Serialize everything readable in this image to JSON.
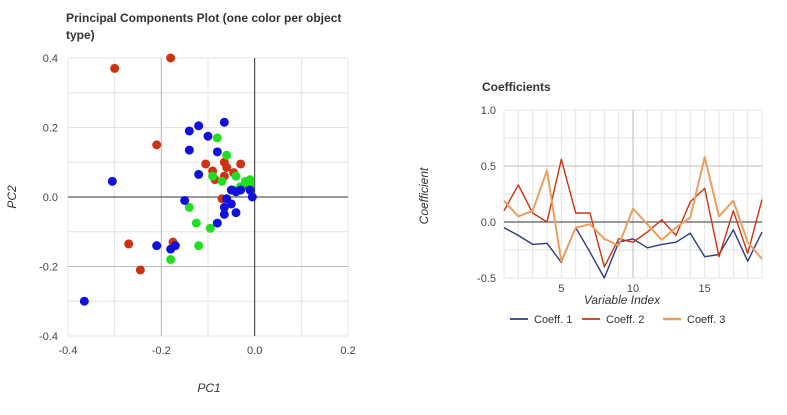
{
  "charts": [
    {
      "type": "scatter",
      "title_line1": "Principal Components Plot (one color per object",
      "title_line2": "type)",
      "xlabel": "PC1",
      "ylabel": "PC2",
      "xlim": [
        -0.4,
        0.2
      ],
      "ylim": [
        -0.4,
        0.4
      ],
      "xticks": [
        -0.4,
        -0.2,
        0.0,
        0.2
      ],
      "xtick_labels": [
        "-0.4",
        "-0.2",
        "0.0",
        "0.2"
      ],
      "yticks": [
        -0.4,
        -0.2,
        0.0,
        0.2,
        0.4
      ],
      "ytick_labels": [
        "-0.4",
        "-0.2",
        "0.0",
        "0.2",
        "0.4"
      ],
      "grid": true,
      "series": [
        {
          "color": "#cc3311",
          "points": [
            [
              -0.3,
              0.37
            ],
            [
              -0.18,
              0.4
            ],
            [
              -0.21,
              0.15
            ],
            [
              -0.27,
              -0.135
            ],
            [
              -0.245,
              -0.21
            ],
            [
              -0.175,
              -0.13
            ],
            [
              -0.105,
              0.095
            ],
            [
              -0.09,
              0.075
            ],
            [
              -0.085,
              0.05
            ],
            [
              -0.065,
              0.1
            ],
            [
              -0.06,
              0.085
            ],
            [
              -0.045,
              0.07
            ],
            [
              -0.03,
              0.095
            ],
            [
              -0.02,
              0.035
            ],
            [
              -0.07,
              -0.005
            ],
            [
              -0.065,
              0.06
            ]
          ]
        },
        {
          "color": "#22dd22",
          "points": [
            [
              -0.08,
              0.17
            ],
            [
              -0.06,
              0.12
            ],
            [
              -0.09,
              0.06
            ],
            [
              -0.07,
              0.045
            ],
            [
              -0.04,
              0.06
            ],
            [
              -0.03,
              0.03
            ],
            [
              -0.02,
              0.045
            ],
            [
              -0.01,
              0.035
            ],
            [
              -0.01,
              0.05
            ],
            [
              -0.045,
              0.02
            ],
            [
              -0.14,
              -0.03
            ],
            [
              -0.125,
              -0.075
            ],
            [
              -0.095,
              -0.09
            ],
            [
              -0.18,
              -0.18
            ],
            [
              -0.12,
              -0.14
            ]
          ]
        },
        {
          "color": "#1111dd",
          "points": [
            [
              -0.305,
              0.045
            ],
            [
              -0.365,
              -0.3
            ],
            [
              -0.21,
              -0.14
            ],
            [
              -0.18,
              -0.15
            ],
            [
              -0.17,
              -0.14
            ],
            [
              -0.15,
              -0.01
            ],
            [
              -0.14,
              0.19
            ],
            [
              -0.12,
              0.205
            ],
            [
              -0.14,
              0.135
            ],
            [
              -0.1,
              0.175
            ],
            [
              -0.08,
              0.13
            ],
            [
              -0.065,
              0.215
            ],
            [
              -0.12,
              0.065
            ],
            [
              -0.08,
              -0.075
            ],
            [
              -0.065,
              -0.03
            ],
            [
              -0.06,
              -0.005
            ],
            [
              -0.065,
              -0.05
            ],
            [
              -0.05,
              -0.02
            ],
            [
              -0.04,
              -0.045
            ],
            [
              -0.05,
              0.02
            ],
            [
              -0.03,
              0.02
            ],
            [
              -0.01,
              0.02
            ],
            [
              -0.005,
              0.0
            ],
            [
              -0.04,
              0.015
            ]
          ]
        }
      ]
    },
    {
      "type": "line",
      "title": "Coefficients",
      "xlabel": "Variable Index",
      "ylabel": "Coefficient",
      "xlim": [
        1,
        19
      ],
      "ylim": [
        -0.5,
        1.0
      ],
      "xticks": [
        5,
        10,
        15
      ],
      "xtick_labels": [
        "5",
        "10",
        "15"
      ],
      "yticks": [
        -0.5,
        0.0,
        0.5,
        1.0
      ],
      "ytick_labels": [
        "-0.5",
        "0.0",
        "0.5",
        "1.0"
      ],
      "grid": true,
      "legend_position": "bottom",
      "x": [
        1,
        2,
        3,
        4,
        5,
        6,
        7,
        8,
        9,
        10,
        11,
        12,
        13,
        14,
        15,
        16,
        17,
        18,
        19
      ],
      "series": [
        {
          "name": "Coeff. 1",
          "color": "#2e3a87",
          "values": [
            -0.05,
            -0.12,
            -0.2,
            -0.19,
            -0.36,
            -0.05,
            -0.27,
            -0.5,
            -0.18,
            -0.15,
            -0.23,
            -0.2,
            -0.18,
            -0.1,
            -0.31,
            -0.29,
            -0.07,
            -0.35,
            -0.09
          ]
        },
        {
          "name": "Coeff. 2",
          "color": "#cc3311",
          "values": [
            0.1,
            0.33,
            0.08,
            0.0,
            0.56,
            0.08,
            0.08,
            -0.4,
            -0.15,
            -0.18,
            -0.09,
            0.02,
            -0.12,
            0.18,
            0.3,
            -0.31,
            0.1,
            -0.28,
            0.2
          ]
        },
        {
          "name": "Coeff. 3",
          "color": "#e8a060",
          "values": [
            0.19,
            0.05,
            0.1,
            0.46,
            -0.35,
            -0.05,
            -0.02,
            -0.15,
            -0.21,
            0.12,
            -0.02,
            -0.16,
            -0.05,
            0.04,
            0.58,
            0.05,
            0.19,
            -0.18,
            -0.33
          ]
        }
      ]
    }
  ]
}
